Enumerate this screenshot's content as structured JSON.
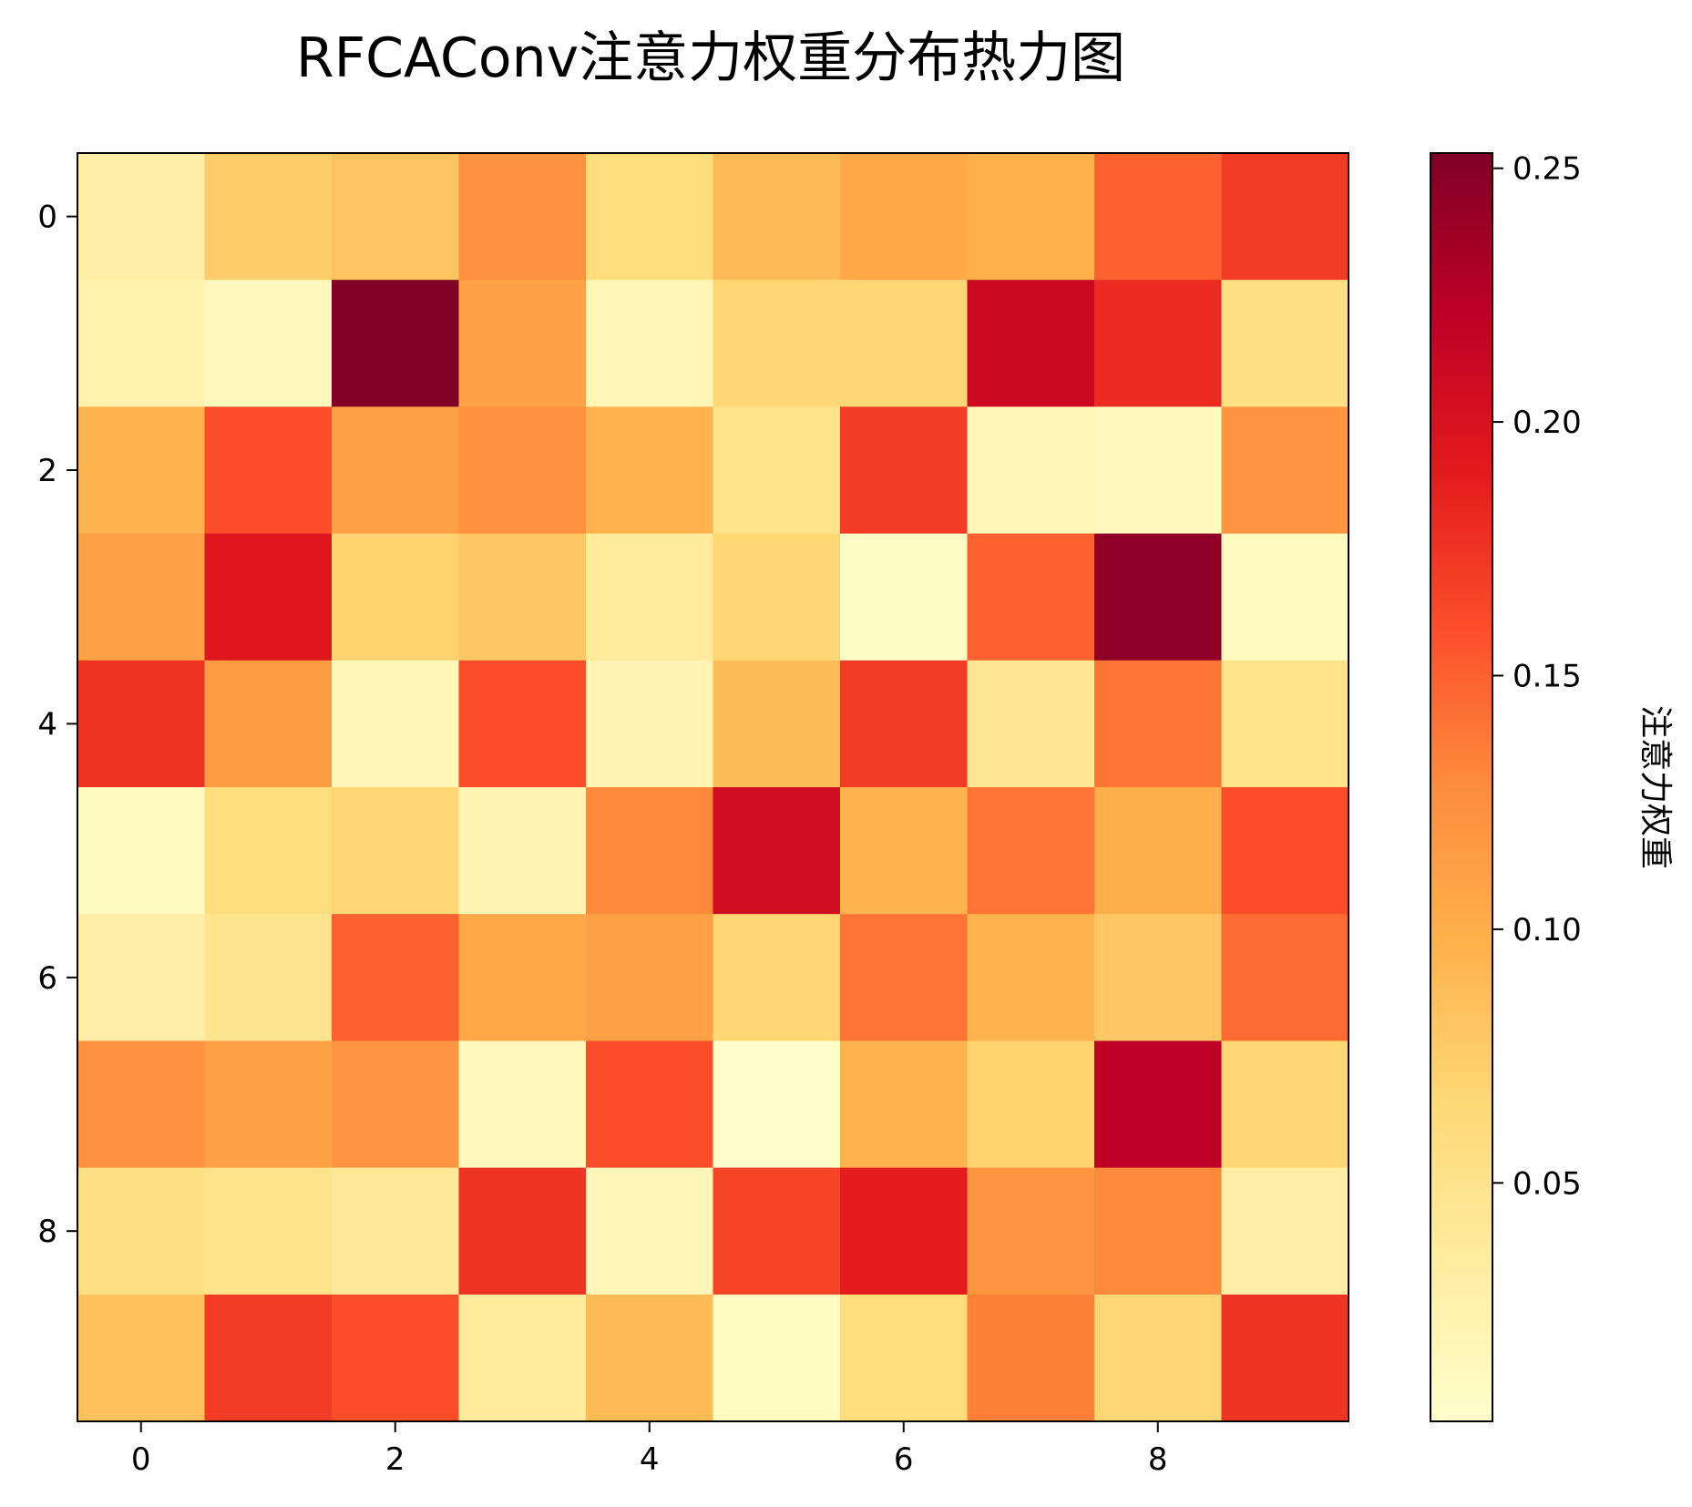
{
  "chart_data": {
    "type": "heatmap",
    "title": "RFCAConv注意力权重分布热力图",
    "colorbar_label": "注意力权重",
    "colormap": "YlOrRd",
    "vmin": 0.003,
    "vmax": 0.253,
    "x_ticks": [
      "0",
      "2",
      "4",
      "6",
      "8"
    ],
    "y_ticks": [
      "0",
      "2",
      "4",
      "6",
      "8"
    ],
    "colorbar_ticks": [
      "0.05",
      "0.10",
      "0.15",
      "0.20",
      "0.25"
    ],
    "grid": false,
    "values": [
      [
        0.03,
        0.075,
        0.082,
        0.125,
        0.06,
        0.09,
        0.105,
        0.098,
        0.15,
        0.17
      ],
      [
        0.025,
        0.014,
        0.252,
        0.11,
        0.018,
        0.068,
        0.068,
        0.21,
        0.18,
        0.055
      ],
      [
        0.095,
        0.16,
        0.112,
        0.125,
        0.095,
        0.05,
        0.17,
        0.018,
        0.014,
        0.12
      ],
      [
        0.11,
        0.195,
        0.07,
        0.08,
        0.038,
        0.068,
        0.007,
        0.15,
        0.245,
        0.012
      ],
      [
        0.175,
        0.115,
        0.018,
        0.16,
        0.022,
        0.088,
        0.17,
        0.045,
        0.14,
        0.05
      ],
      [
        0.012,
        0.06,
        0.068,
        0.022,
        0.13,
        0.205,
        0.095,
        0.14,
        0.1,
        0.16
      ],
      [
        0.03,
        0.048,
        0.15,
        0.105,
        0.112,
        0.068,
        0.14,
        0.095,
        0.08,
        0.145
      ],
      [
        0.125,
        0.112,
        0.12,
        0.015,
        0.16,
        0.005,
        0.095,
        0.07,
        0.22,
        0.068
      ],
      [
        0.055,
        0.05,
        0.04,
        0.175,
        0.018,
        0.165,
        0.19,
        0.12,
        0.13,
        0.03
      ],
      [
        0.085,
        0.17,
        0.16,
        0.038,
        0.09,
        0.01,
        0.06,
        0.135,
        0.068,
        0.175
      ]
    ]
  }
}
